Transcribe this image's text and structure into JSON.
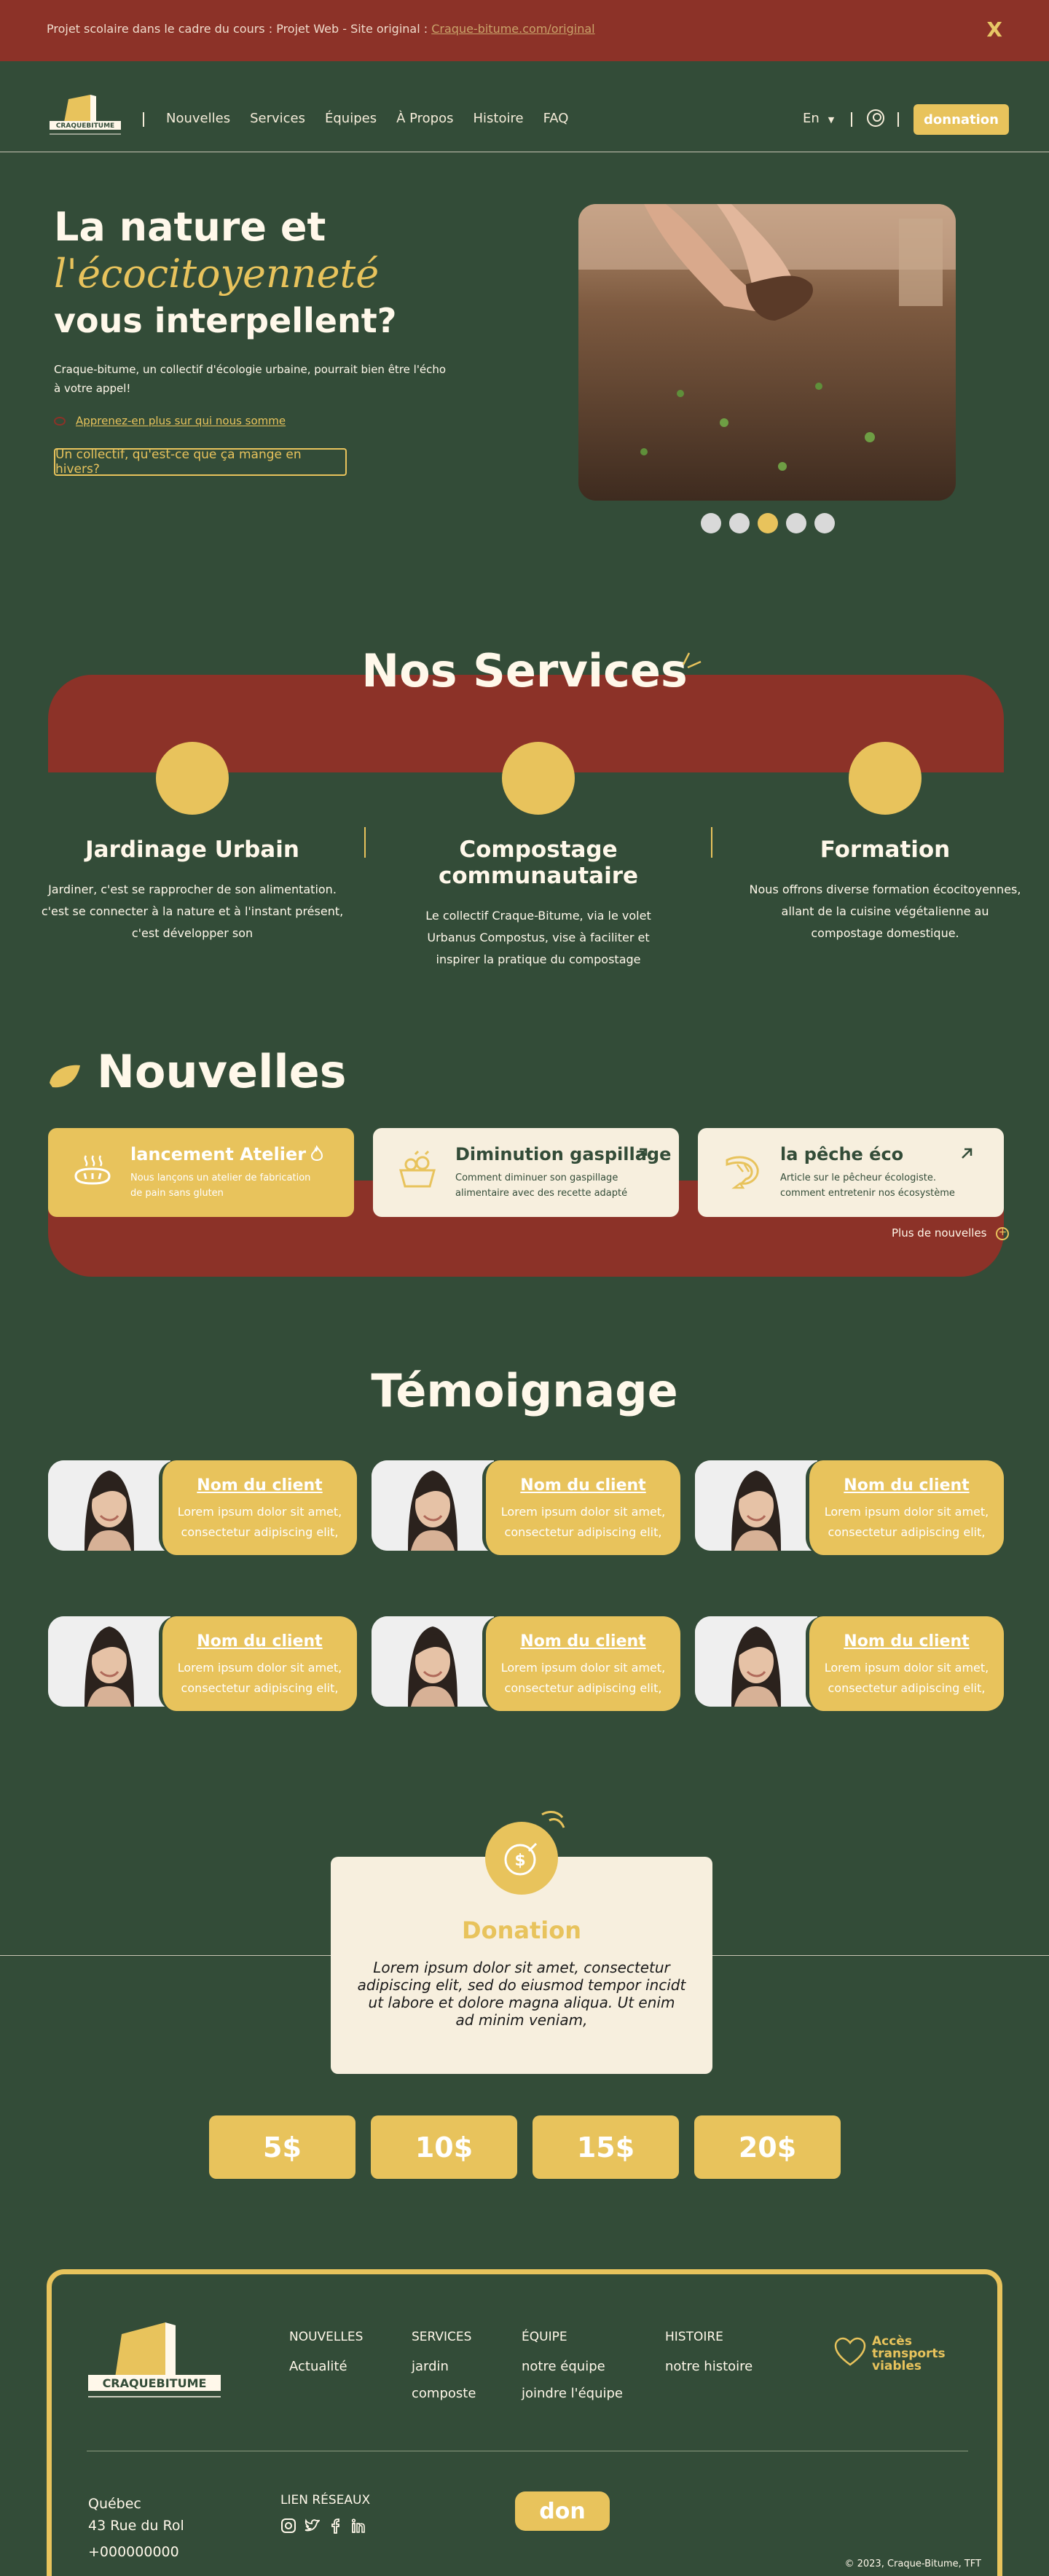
{
  "banner": {
    "message": "Projet scolaire dans le cadre du cours : Projet Web - Site original : ",
    "link": "Craque-bitume.com/original",
    "close": "X"
  },
  "nav": {
    "logo_text": "CRAQUEBITUME",
    "links": [
      "Nouvelles",
      "Services",
      "Équipes",
      "À Propos",
      "Histoire",
      "FAQ"
    ],
    "lang": "En",
    "donate": "donnation"
  },
  "hero": {
    "title_1": "La nature et",
    "title_script": "l'écocitoyenneté",
    "title_2": "vous interpellent?",
    "description": "Craque-bitume, un collectif d'écologie urbaine, pourrait bien être l'écho à votre appel!",
    "link": "Apprenez-en plus sur qui nous somme",
    "button": "Un collectif, qu'est-ce que ça mange en hivers?",
    "slides": 5,
    "active_slide": 3
  },
  "services": {
    "title": "Nos Services",
    "items": [
      {
        "title": "Jardinage Urbain",
        "desc": "Jardiner, c'est se rapprocher de son alimentation. c'est se connecter à la nature et à l'instant présent, c'est développer son"
      },
      {
        "title": "Compostage communautaire",
        "desc": "Le collectif Craque-Bitume, via le volet Urbanus Compostus, vise à faciliter et inspirer la pratique du compostage"
      },
      {
        "title": "Formation",
        "desc": "Nous offrons diverse formation écocitoyennes, allant de la cuisine végétalienne au compostage domestique."
      }
    ]
  },
  "news": {
    "title": "Nouvelles",
    "items": [
      {
        "title": "lancement Atelier",
        "desc": "Nous lançons un atelier de fabrication de pain sans gluten",
        "icon": "bread-icon",
        "action_icon": "flame-icon"
      },
      {
        "title": "Diminution gaspillage",
        "desc": "Comment diminuer son gaspillage alimentaire avec des recette adapté",
        "icon": "food-basket-icon",
        "action_icon": "arrow-up-right-icon"
      },
      {
        "title": "la pêche éco",
        "desc": "Article sur le pêcheur écologiste. comment entretenir nos écosystème",
        "icon": "shrimp-icon",
        "action_icon": "arrow-up-right-icon"
      }
    ],
    "more": "Plus de nouvelles"
  },
  "testimonials": {
    "title": "Témoignage",
    "items": [
      {
        "name": "Nom du client",
        "text": "Lorem ipsum dolor sit amet, consectetur adipiscing elit,"
      },
      {
        "name": "Nom du client",
        "text": "Lorem ipsum dolor sit amet, consectetur adipiscing elit,"
      },
      {
        "name": "Nom du client",
        "text": "Lorem ipsum dolor sit amet, consectetur adipiscing elit,"
      },
      {
        "name": "Nom du client",
        "text": "Lorem ipsum dolor sit amet, consectetur adipiscing elit,"
      },
      {
        "name": "Nom du client",
        "text": "Lorem ipsum dolor sit amet, consectetur adipiscing elit,"
      },
      {
        "name": "Nom du client",
        "text": "Lorem ipsum dolor sit amet, consectetur adipiscing elit,"
      }
    ]
  },
  "donation": {
    "title": "Donation",
    "text": "Lorem ipsum dolor sit amet, consectetur adipiscing elit, sed do eiusmod tempor incidt ut labore et dolore magna aliqua. Ut enim ad minim veniam,",
    "amounts": [
      "5$",
      "10$",
      "15$",
      "20$"
    ]
  },
  "footer": {
    "logo_text": "CRAQUEBITUME",
    "columns": [
      {
        "heading": "NOUVELLES",
        "items": [
          "Actualité"
        ]
      },
      {
        "heading": "SERVICES",
        "items": [
          "jardin",
          "composte"
        ]
      },
      {
        "heading": "ÉQUIPE",
        "items": [
          "notre équipe",
          "joindre l'équipe"
        ]
      },
      {
        "heading": "HISTOIRE",
        "items": [
          "notre histoire"
        ]
      }
    ],
    "access": "Accès transports viables",
    "city": "Québec",
    "address": "43 Rue du Rol",
    "phone": "+000000000",
    "social_heading": "LIEN RÉSEAUX",
    "social": [
      "instagram-icon",
      "twitter-icon",
      "facebook-icon",
      "linkedin-icon"
    ],
    "don": "don",
    "copyright": "© 2023, Craque-Bitume, TFT"
  },
  "colors": {
    "background": "#334c38",
    "accent": "#e8c35c",
    "brick": "#8c3228",
    "cream": "#f7efde"
  }
}
